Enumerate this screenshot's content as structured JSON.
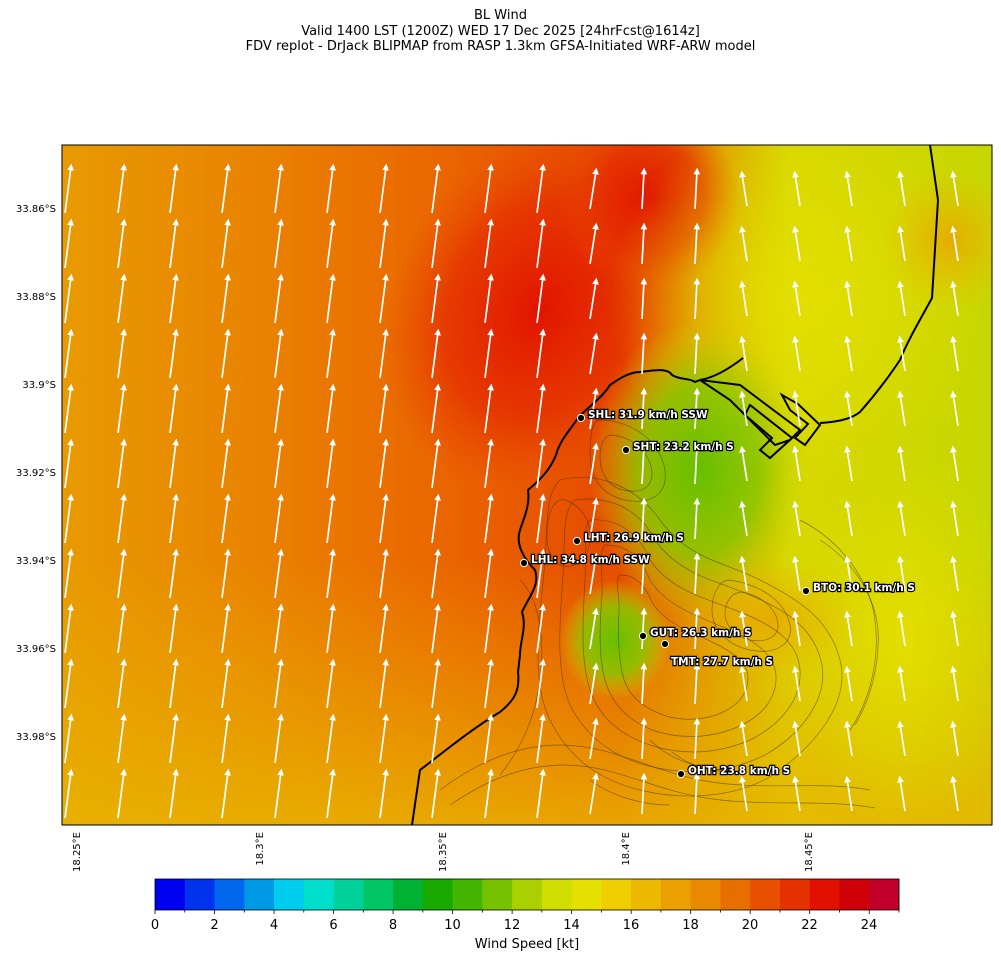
{
  "title": {
    "line1": "BL Wind",
    "line2": "Valid 1400 LST (1200Z) WED 17 Dec 2025 [24hrFcst@1614z]",
    "line3": "FDV replot - DrJack BLIPMAP from RASP 1.3km GFSA-Initiated WRF-ARW model"
  },
  "map": {
    "lat_labels": [
      "33.86°S",
      "33.88°S",
      "33.9°S",
      "33.92°S",
      "33.94°S",
      "33.96°S",
      "33.98°S"
    ],
    "lon_labels": [
      "18.25°E",
      "18.3°E",
      "18.35°E",
      "18.4°E",
      "18.45°E"
    ],
    "stations": [
      {
        "id": "SHL",
        "label": "SHL: 31.9 km/h SSW"
      },
      {
        "id": "SHT",
        "label": "SHT: 23.2 km/h S"
      },
      {
        "id": "LHT",
        "label": "LHT: 26.9 km/h S"
      },
      {
        "id": "LHL",
        "label": "LHL: 34.8 km/h SSW"
      },
      {
        "id": "BTO",
        "label": "BTO: 30.1 km/h S"
      },
      {
        "id": "GUT",
        "label": "GUT: 26.3 km/h S"
      },
      {
        "id": "TMT",
        "label": "TMT: 27.7 km/h S"
      },
      {
        "id": "OHT",
        "label": "OHT: 23.8 km/h S"
      }
    ]
  },
  "colorbar": {
    "label": "Wind Speed [kt]",
    "ticks": [
      "0",
      "2",
      "4",
      "6",
      "8",
      "10",
      "12",
      "14",
      "16",
      "18",
      "20",
      "22",
      "24"
    ],
    "colors": [
      "#0000f0",
      "#0033ee",
      "#0066ee",
      "#0099e6",
      "#00ccee",
      "#00dfcc",
      "#00d299",
      "#00c666",
      "#00b233",
      "#19aa00",
      "#44b500",
      "#77c200",
      "#aad000",
      "#cfdd00",
      "#e6e000",
      "#efce00",
      "#ecb800",
      "#eaa000",
      "#ea8800",
      "#e86e00",
      "#e85000",
      "#e53000",
      "#e21000",
      "#d00008",
      "#c0002a"
    ]
  }
}
